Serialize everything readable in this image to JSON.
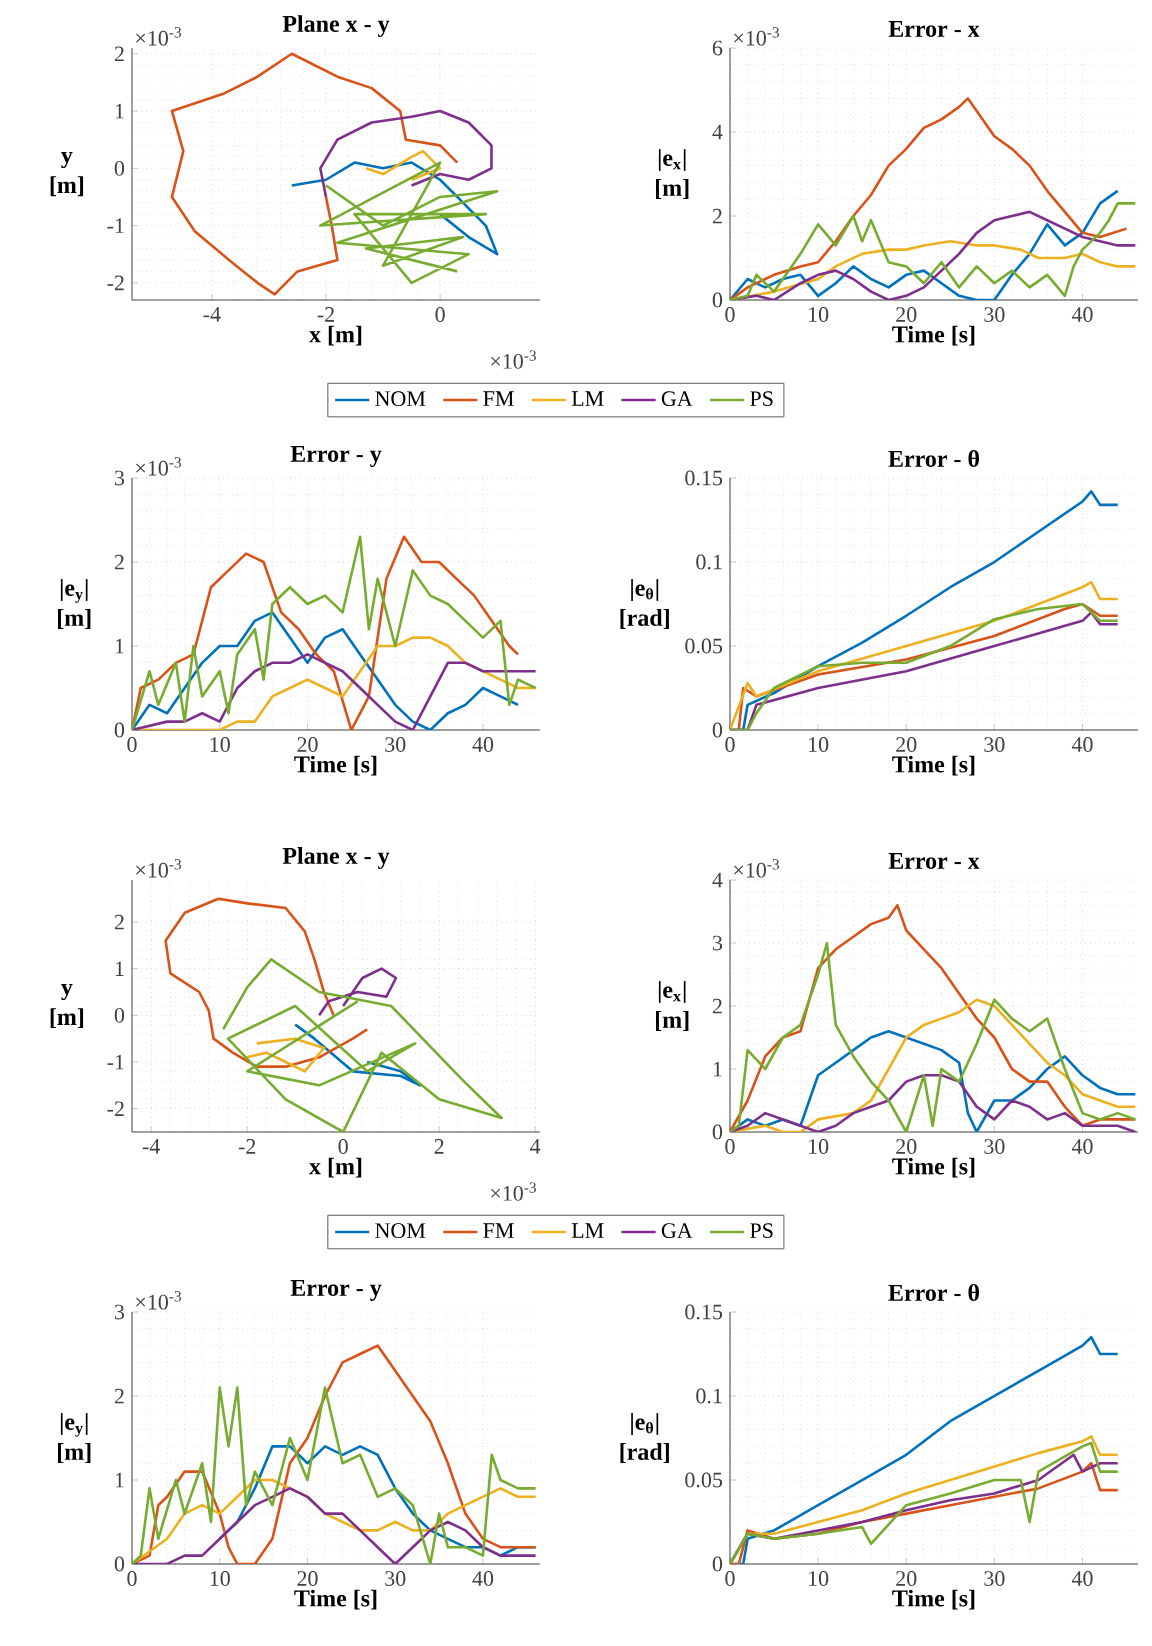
{
  "chart_data": [
    {
      "type": "line",
      "title": "Plane x - y",
      "xlabel": "x [m]",
      "ylabel": "y [m]",
      "xlim": [
        -5.4,
        1.75
      ],
      "ylim": [
        -2.3,
        2.1
      ],
      "xticks": [
        -4,
        -2,
        0
      ],
      "yticks": [
        -2,
        -1,
        0,
        1,
        2
      ],
      "grid": true,
      "legend": "bottom",
      "annotations": [
        "×10$^{-3}$",
        "×10$^{-3}$"
      ],
      "series": [
        {
          "name": "NOM",
          "color": "#0072bd",
          "x": [
            -2.6,
            -2,
            -1.5,
            -1,
            -0.5,
            0,
            0.3,
            0.8,
            1.0,
            0.5,
            0
          ],
          "values": [
            -0.3,
            -0.2,
            0.1,
            0,
            0.1,
            -0.2,
            -0.5,
            -1.0,
            -1.5,
            -1.2,
            -0.8
          ]
        },
        {
          "name": "FM",
          "color": "#d95319",
          "x": [
            0.3,
            0,
            -0.6,
            -0.7,
            -1.2,
            -1.8,
            -2.6,
            -3.2,
            -3.8,
            -4.7,
            -4.5,
            -4.7,
            -4.3,
            -3.7,
            -3.2,
            -2.9,
            -2.5,
            -1.8,
            -1.9,
            -2.0
          ],
          "values": [
            0.1,
            0.4,
            0.5,
            1.0,
            1.4,
            1.6,
            2.0,
            1.6,
            1.3,
            1.0,
            0.3,
            -0.5,
            -1.1,
            -1.6,
            -2.0,
            -2.2,
            -1.8,
            -1.6,
            -1.0,
            -0.5
          ]
        },
        {
          "name": "LM",
          "color": "#edb120",
          "x": [
            -1.3,
            -1,
            -0.5,
            -0.3,
            0,
            -0.5
          ],
          "values": [
            0,
            -0.1,
            0.2,
            0.3,
            0,
            -0.2
          ]
        },
        {
          "name": "GA",
          "color": "#7e2f8e",
          "x": [
            -2.0,
            -2.1,
            -1.8,
            -1.2,
            -0.5,
            0,
            0.5,
            0.9,
            0.9,
            0.5,
            0,
            -0.5
          ],
          "values": [
            -0.5,
            0,
            0.5,
            0.8,
            0.9,
            1.0,
            0.8,
            0.4,
            0,
            -0.2,
            -0.1,
            -0.3
          ]
        },
        {
          "name": "PS",
          "color": "#77ac30",
          "x": [
            -2,
            -1,
            0,
            1,
            -1.8,
            0.5,
            -0.5,
            -1.5,
            0.8,
            -2.1,
            0,
            -1,
            0.4,
            -1.3,
            0.3
          ],
          "values": [
            -0.3,
            -1,
            -0.5,
            -0.4,
            -1.3,
            -1.5,
            -2.0,
            -0.8,
            -0.8,
            -1.0,
            0.1,
            -1.7,
            -1.2,
            -1.4,
            -1.8
          ]
        }
      ]
    },
    {
      "type": "line",
      "title": "Error - x",
      "xlabel": "Time [s]",
      "ylabel": "|e$_{x}$| [m]",
      "xlim": [
        0,
        46.3
      ],
      "ylim": [
        0,
        6
      ],
      "xticks": [
        0,
        10,
        20,
        30,
        40
      ],
      "yticks": [
        0,
        2,
        4,
        6
      ],
      "grid": true,
      "annotations": [
        "×10$^{-3}$"
      ],
      "series": [
        {
          "color": "#0072bd",
          "x": [
            0,
            2,
            4,
            6,
            8,
            10,
            12,
            14,
            16,
            18,
            20,
            22,
            24,
            26,
            28,
            30,
            32,
            34,
            36,
            38,
            40,
            42,
            44
          ],
          "values": [
            0,
            0.5,
            0.3,
            0.5,
            0.6,
            0.1,
            0.4,
            0.8,
            0.5,
            0.3,
            0.6,
            0.7,
            0.4,
            0.1,
            0,
            0,
            0.6,
            1.1,
            1.8,
            1.3,
            1.6,
            2.3,
            2.6
          ]
        },
        {
          "color": "#d95319",
          "x": [
            0,
            2,
            5,
            8,
            10,
            12,
            14,
            16,
            18,
            20,
            22,
            24,
            26,
            27,
            28,
            30,
            32,
            34,
            36,
            38,
            40,
            42,
            45
          ],
          "values": [
            0,
            0.3,
            0.6,
            0.8,
            0.9,
            1.4,
            2.0,
            2.5,
            3.2,
            3.6,
            4.1,
            4.3,
            4.6,
            4.8,
            4.5,
            3.9,
            3.6,
            3.2,
            2.6,
            2.1,
            1.6,
            1.5,
            1.7
          ]
        },
        {
          "color": "#edb120",
          "x": [
            0,
            5,
            10,
            12,
            15,
            18,
            20,
            22,
            25,
            28,
            30,
            33,
            35,
            38,
            40,
            42,
            44,
            46
          ],
          "values": [
            0,
            0.2,
            0.5,
            0.8,
            1.1,
            1.2,
            1.2,
            1.3,
            1.4,
            1.3,
            1.3,
            1.2,
            1.0,
            1.0,
            1.1,
            0.9,
            0.8,
            0.8
          ]
        },
        {
          "color": "#7e2f8e",
          "x": [
            0,
            3,
            5,
            8,
            10,
            12,
            14,
            16,
            18,
            20,
            22,
            24,
            26,
            28,
            30,
            32,
            34,
            36,
            38,
            40,
            42,
            44,
            46
          ],
          "values": [
            0,
            0.1,
            0,
            0.4,
            0.6,
            0.7,
            0.5,
            0.2,
            0,
            0.1,
            0.3,
            0.7,
            1.1,
            1.6,
            1.9,
            2.0,
            2.1,
            1.9,
            1.7,
            1.5,
            1.4,
            1.3,
            1.3
          ]
        },
        {
          "color": "#77ac30",
          "x": [
            0,
            2,
            3,
            5,
            7,
            8,
            10,
            12,
            14,
            15,
            16,
            18,
            20,
            22,
            24,
            26,
            28,
            30,
            32,
            34,
            36,
            38,
            39,
            40,
            42,
            43,
            44,
            46
          ],
          "values": [
            0,
            0.1,
            0.6,
            0.2,
            0.8,
            1.1,
            1.8,
            1.3,
            2.0,
            1.4,
            1.9,
            0.9,
            0.8,
            0.4,
            0.9,
            0.3,
            0.8,
            0.4,
            0.7,
            0.3,
            0.6,
            0.1,
            0.8,
            1.2,
            1.6,
            1.9,
            2.3,
            2.3
          ]
        }
      ]
    },
    {
      "type": "line",
      "title": "Error - y",
      "xlabel": "Time [s]",
      "ylabel": "|e$_{y}$| [m]",
      "xlim": [
        0,
        46.5
      ],
      "ylim": [
        0,
        3
      ],
      "xticks": [
        0,
        10,
        20,
        30,
        40
      ],
      "yticks": [
        0,
        1,
        2,
        3
      ],
      "grid": true,
      "annotations": [
        "×10$^{-3}$"
      ],
      "series": [
        {
          "color": "#0072bd",
          "x": [
            0,
            2,
            4,
            6,
            8,
            10,
            12,
            14,
            16,
            18,
            20,
            22,
            24,
            26,
            28,
            30,
            32,
            34,
            36,
            38,
            40,
            42,
            44
          ],
          "values": [
            0,
            0.3,
            0.2,
            0.5,
            0.8,
            1.0,
            1.0,
            1.3,
            1.4,
            1.1,
            0.8,
            1.1,
            1.2,
            0.9,
            0.6,
            0.3,
            0.1,
            0,
            0.2,
            0.3,
            0.5,
            0.4,
            0.3
          ]
        },
        {
          "color": "#d95319",
          "x": [
            0,
            1,
            3,
            5,
            7,
            9,
            11,
            13,
            15,
            17,
            19,
            21,
            23,
            25,
            27,
            29,
            31,
            33,
            35,
            37,
            39,
            41,
            43,
            44
          ],
          "values": [
            0,
            0.5,
            0.6,
            0.8,
            0.9,
            1.7,
            1.9,
            2.1,
            2.0,
            1.4,
            1.2,
            0.9,
            0.7,
            0,
            0.4,
            1.8,
            2.3,
            2.0,
            2.0,
            1.8,
            1.6,
            1.3,
            1.0,
            0.9
          ]
        },
        {
          "color": "#edb120",
          "x": [
            0,
            10,
            12,
            14,
            16,
            18,
            20,
            22,
            24,
            26,
            28,
            30,
            32,
            34,
            36,
            38,
            40,
            42,
            44,
            46
          ],
          "values": [
            0,
            0,
            0.1,
            0.1,
            0.4,
            0.5,
            0.6,
            0.5,
            0.4,
            0.7,
            1.0,
            1.0,
            1.1,
            1.1,
            1.0,
            0.8,
            0.7,
            0.6,
            0.5,
            0.5
          ]
        },
        {
          "color": "#7e2f8e",
          "x": [
            0,
            4,
            6,
            8,
            10,
            12,
            14,
            16,
            18,
            20,
            22,
            24,
            26,
            28,
            30,
            32,
            34,
            36,
            38,
            40,
            42,
            44,
            46
          ],
          "values": [
            0,
            0.1,
            0.1,
            0.2,
            0.1,
            0.5,
            0.7,
            0.8,
            0.8,
            0.9,
            0.8,
            0.7,
            0.5,
            0.3,
            0.1,
            0,
            0.4,
            0.8,
            0.8,
            0.7,
            0.7,
            0.7,
            0.7
          ]
        },
        {
          "color": "#77ac30",
          "x": [
            0,
            2,
            3,
            5,
            6,
            7,
            8,
            10,
            11,
            12,
            14,
            15,
            16,
            18,
            20,
            22,
            24,
            26,
            27,
            28,
            30,
            32,
            34,
            36,
            38,
            40,
            42,
            43,
            44,
            46
          ],
          "values": [
            0,
            0.7,
            0.3,
            0.8,
            0.1,
            1.0,
            0.4,
            0.7,
            0.2,
            0.9,
            1.2,
            0.6,
            1.5,
            1.7,
            1.5,
            1.6,
            1.4,
            2.3,
            1.2,
            1.8,
            1.0,
            1.9,
            1.6,
            1.5,
            1.3,
            1.1,
            1.3,
            0.3,
            0.6,
            0.5
          ]
        }
      ]
    },
    {
      "type": "line",
      "title": "Error - θ",
      "xlabel": "Time [s]",
      "ylabel": "|e$_{θ}$| [rad]",
      "xlim": [
        0,
        46.3
      ],
      "ylim": [
        0,
        0.15
      ],
      "xticks": [
        0,
        10,
        20,
        30,
        40
      ],
      "yticks": [
        0,
        0.05,
        0.1,
        0.15
      ],
      "grid": true,
      "series": [
        {
          "color": "#0072bd",
          "x": [
            0,
            1.5,
            2,
            5,
            10,
            15,
            20,
            25,
            30,
            35,
            40,
            41,
            42,
            44
          ],
          "values": [
            0,
            0,
            0.015,
            0.022,
            0.038,
            0.052,
            0.068,
            0.085,
            0.1,
            0.118,
            0.136,
            0.142,
            0.134,
            0.134
          ]
        },
        {
          "color": "#d95319",
          "x": [
            0,
            1,
            1.5,
            3,
            10,
            20,
            30,
            38,
            40,
            42,
            44
          ],
          "values": [
            0,
            0,
            0.025,
            0.02,
            0.033,
            0.042,
            0.056,
            0.072,
            0.075,
            0.068,
            0.068
          ]
        },
        {
          "color": "#edb120",
          "x": [
            0,
            2,
            3,
            10,
            20,
            30,
            35,
            40,
            41,
            42,
            44
          ],
          "values": [
            0,
            0.028,
            0.02,
            0.035,
            0.05,
            0.065,
            0.075,
            0.085,
            0.088,
            0.078,
            0.078
          ]
        },
        {
          "color": "#7e2f8e",
          "x": [
            0,
            2,
            3,
            10,
            20,
            30,
            40,
            41,
            42,
            44
          ],
          "values": [
            0,
            0,
            0.015,
            0.025,
            0.035,
            0.05,
            0.065,
            0.07,
            0.063,
            0.063
          ]
        },
        {
          "color": "#77ac30",
          "x": [
            0,
            2,
            3,
            5,
            10,
            15,
            20,
            25,
            30,
            35,
            40,
            41,
            42,
            44
          ],
          "values": [
            0,
            0,
            0.01,
            0.025,
            0.038,
            0.04,
            0.04,
            0.05,
            0.066,
            0.072,
            0.075,
            0.07,
            0.065,
            0.065
          ]
        }
      ]
    },
    {
      "type": "line",
      "title": "Plane x - y",
      "xlabel": "x [m]",
      "ylabel": "y [m]",
      "xlim": [
        -4.4,
        4.1
      ],
      "ylim": [
        -2.5,
        2.9
      ],
      "xticks": [
        -4,
        -2,
        0,
        2,
        4
      ],
      "yticks": [
        -2,
        -1,
        0,
        1,
        2
      ],
      "grid": true,
      "legend": "bottom",
      "annotations": [
        "×10$^{-3}$",
        "×10$^{-3}$"
      ],
      "series": [
        {
          "name": "NOM",
          "color": "#0072bd",
          "x": [
            -1.0,
            -0.6,
            0.2,
            1.2,
            1.6,
            1.2,
            0.5
          ],
          "values": [
            -0.2,
            -0.5,
            -1.2,
            -1.3,
            -1.5,
            -1.2,
            -1.0
          ]
        },
        {
          "name": "FM",
          "color": "#d95319",
          "x": [
            -0.2,
            -0.4,
            -0.6,
            -0.8,
            -1.2,
            -2.0,
            -2.6,
            -3.3,
            -3.7,
            -3.6,
            -3.0,
            -2.8,
            -2.7,
            -2.3,
            -1.8,
            -1.2,
            -0.5,
            0.2,
            0.5
          ],
          "values": [
            0.0,
            0.5,
            1.2,
            1.8,
            2.3,
            2.4,
            2.5,
            2.2,
            1.6,
            0.9,
            0.5,
            0.1,
            -0.5,
            -0.8,
            -1.1,
            -1.1,
            -0.9,
            -0.5,
            -0.3
          ]
        },
        {
          "name": "LM",
          "color": "#edb120",
          "x": [
            -2.0,
            -1.6,
            -1.2,
            -0.8,
            -0.4,
            -1.0,
            -1.8
          ],
          "values": [
            -0.9,
            -0.8,
            -1.0,
            -1.2,
            -0.7,
            -0.5,
            -0.6
          ]
        },
        {
          "name": "GA",
          "color": "#7e2f8e",
          "x": [
            0,
            0.4,
            0.8,
            1.1,
            0.9,
            0.3,
            -0.3,
            -0.5
          ],
          "values": [
            0.2,
            0.8,
            1.0,
            0.8,
            0.4,
            0.5,
            0.3,
            0
          ]
        },
        {
          "name": "PS",
          "color": "#77ac30",
          "x": [
            -2.5,
            -2.0,
            -1.5,
            -0.5,
            1.0,
            2.5,
            3.3,
            2.0,
            0.8,
            0,
            -1.2,
            -2.4,
            -1.0,
            0.5,
            1.5,
            -0.5,
            -2.0,
            0.3
          ],
          "values": [
            -0.3,
            0.6,
            1.2,
            0.5,
            0.2,
            -1.4,
            -2.2,
            -1.8,
            -0.8,
            -2.5,
            -1.8,
            -0.5,
            0.2,
            -1.2,
            -0.6,
            -1.5,
            -1.2,
            0.3
          ]
        }
      ]
    },
    {
      "type": "line",
      "title": "Error - x",
      "xlabel": "Time [s]",
      "ylabel": "|e$_{x}$| [m]",
      "xlim": [
        0,
        46.3
      ],
      "ylim": [
        0,
        4
      ],
      "xticks": [
        0,
        10,
        20,
        30,
        40
      ],
      "yticks": [
        0,
        1,
        2,
        3,
        4
      ],
      "grid": true,
      "annotations": [
        "×10$^{-3}$"
      ],
      "series": [
        {
          "color": "#0072bd",
          "x": [
            0,
            2,
            4,
            6,
            8,
            10,
            12,
            14,
            16,
            18,
            20,
            22,
            24,
            26,
            27,
            28,
            30,
            32,
            34,
            36,
            38,
            40,
            42,
            44,
            46
          ],
          "values": [
            0,
            0.2,
            0.1,
            0.2,
            0.1,
            0.9,
            1.1,
            1.3,
            1.5,
            1.6,
            1.5,
            1.4,
            1.3,
            1.1,
            0.3,
            0,
            0.5,
            0.5,
            0.7,
            1.0,
            1.2,
            0.9,
            0.7,
            0.6,
            0.6
          ]
        },
        {
          "color": "#d95319",
          "x": [
            0,
            2,
            4,
            6,
            8,
            10,
            12,
            14,
            16,
            18,
            19,
            20,
            22,
            24,
            26,
            28,
            30,
            32,
            34,
            36,
            38,
            40,
            42,
            44,
            46
          ],
          "values": [
            0,
            0.5,
            1.2,
            1.5,
            1.6,
            2.6,
            2.9,
            3.1,
            3.3,
            3.4,
            3.6,
            3.2,
            2.9,
            2.6,
            2.2,
            1.8,
            1.5,
            1.0,
            0.8,
            0.8,
            0.4,
            0.1,
            0.2,
            0.2,
            0.2
          ]
        },
        {
          "color": "#edb120",
          "x": [
            0,
            4,
            6,
            8,
            10,
            14,
            16,
            18,
            20,
            22,
            24,
            26,
            28,
            30,
            32,
            34,
            36,
            38,
            40,
            42,
            44,
            46
          ],
          "values": [
            0,
            0.1,
            0,
            0,
            0.2,
            0.3,
            0.5,
            1.0,
            1.5,
            1.7,
            1.8,
            1.9,
            2.1,
            2.0,
            1.7,
            1.4,
            1.1,
            0.9,
            0.6,
            0.5,
            0.4,
            0.4
          ]
        },
        {
          "color": "#7e2f8e",
          "x": [
            0,
            2,
            4,
            6,
            8,
            10,
            12,
            14,
            16,
            18,
            20,
            22,
            24,
            26,
            28,
            30,
            32,
            34,
            36,
            38,
            40,
            42,
            44,
            46
          ],
          "values": [
            0,
            0.1,
            0.3,
            0.2,
            0.1,
            0,
            0.1,
            0.3,
            0.4,
            0.5,
            0.8,
            0.9,
            0.9,
            0.8,
            0.4,
            0.2,
            0.5,
            0.4,
            0.2,
            0.3,
            0.1,
            0.1,
            0.1,
            0
          ]
        },
        {
          "color": "#77ac30",
          "x": [
            0,
            1,
            2,
            4,
            6,
            8,
            10,
            11,
            12,
            14,
            16,
            18,
            20,
            22,
            23,
            24,
            26,
            28,
            30,
            32,
            34,
            36,
            38,
            40,
            42,
            44,
            46
          ],
          "values": [
            0,
            0.1,
            1.3,
            1.0,
            1.5,
            1.7,
            2.5,
            3.0,
            1.7,
            1.2,
            0.8,
            0.5,
            0,
            0.9,
            0.1,
            1.0,
            0.8,
            1.4,
            2.1,
            1.8,
            1.6,
            1.8,
            1.0,
            0.3,
            0.2,
            0.3,
            0.2
          ]
        }
      ]
    },
    {
      "type": "line",
      "title": "Error - y",
      "xlabel": "Time [s]",
      "ylabel": "|e$_{y}$| [m]",
      "xlim": [
        0,
        46.5
      ],
      "ylim": [
        0,
        3
      ],
      "xticks": [
        0,
        10,
        20,
        30,
        40
      ],
      "yticks": [
        0,
        1,
        2,
        3
      ],
      "grid": true,
      "annotations": [
        "×10$^{-3}$"
      ],
      "series": [
        {
          "color": "#0072bd",
          "x": [
            10,
            12,
            14,
            16,
            18,
            20,
            22,
            24,
            26,
            28,
            30,
            32,
            34,
            36,
            38,
            40,
            42,
            44,
            46
          ],
          "values": [
            0.3,
            0.5,
            0.9,
            1.4,
            1.4,
            1.2,
            1.4,
            1.3,
            1.4,
            1.3,
            0.9,
            0.6,
            0.4,
            0.3,
            0.2,
            0.2,
            0.1,
            0.2,
            0.2
          ]
        },
        {
          "color": "#d95319",
          "x": [
            0,
            2,
            3,
            4,
            6,
            8,
            10,
            11,
            12,
            14,
            16,
            18,
            20,
            22,
            24,
            26,
            28,
            30,
            32,
            34,
            36,
            38,
            40,
            42,
            44,
            46
          ],
          "values": [
            0,
            0.1,
            0.7,
            0.8,
            1.1,
            1.1,
            0.6,
            0.2,
            0,
            0,
            0.3,
            1.2,
            1.5,
            2.0,
            2.4,
            2.5,
            2.6,
            2.3,
            2.0,
            1.7,
            1.2,
            0.6,
            0.3,
            0.2,
            0.2,
            0.2
          ]
        },
        {
          "color": "#edb120",
          "x": [
            0,
            4,
            6,
            8,
            10,
            12,
            14,
            16,
            18,
            20,
            22,
            24,
            26,
            28,
            30,
            32,
            34,
            36,
            38,
            40,
            42,
            44,
            46
          ],
          "values": [
            0,
            0.3,
            0.6,
            0.7,
            0.6,
            0.8,
            1.0,
            1.0,
            0.9,
            0.8,
            0.6,
            0.5,
            0.4,
            0.4,
            0.5,
            0.4,
            0.4,
            0.6,
            0.7,
            0.8,
            0.9,
            0.8,
            0.8
          ]
        },
        {
          "color": "#7e2f8e",
          "x": [
            0,
            4,
            6,
            8,
            10,
            12,
            14,
            16,
            18,
            20,
            22,
            24,
            26,
            28,
            30,
            32,
            34,
            36,
            38,
            40,
            42,
            44,
            46
          ],
          "values": [
            0,
            0,
            0.1,
            0.1,
            0.3,
            0.5,
            0.7,
            0.8,
            0.9,
            0.8,
            0.6,
            0.6,
            0.4,
            0.2,
            0,
            0.2,
            0.4,
            0.5,
            0.4,
            0.2,
            0.1,
            0.1,
            0.1
          ]
        },
        {
          "color": "#77ac30",
          "x": [
            0,
            1,
            2,
            3,
            5,
            6,
            8,
            9,
            10,
            11,
            12,
            13,
            14,
            16,
            18,
            20,
            22,
            24,
            26,
            28,
            30,
            32,
            34,
            35,
            36,
            38,
            40,
            41,
            42,
            44,
            46
          ],
          "values": [
            0,
            0.1,
            0.9,
            0.3,
            1.0,
            0.6,
            1.2,
            0.5,
            2.1,
            1.4,
            2.1,
            0.7,
            1.1,
            0.7,
            1.5,
            1.0,
            2.1,
            1.2,
            1.3,
            0.8,
            0.9,
            0.7,
            0,
            0.6,
            0.2,
            0.2,
            0.1,
            1.3,
            1.0,
            0.9,
            0.9
          ]
        }
      ]
    },
    {
      "type": "line",
      "title": "Error - θ",
      "xlabel": "Time [s]",
      "ylabel": "|e$_{θ}$| [rad]",
      "xlim": [
        0,
        46.3
      ],
      "ylim": [
        0,
        0.15
      ],
      "xticks": [
        0,
        10,
        20,
        30,
        40
      ],
      "yticks": [
        0,
        0.05,
        0.1,
        0.15
      ],
      "grid": true,
      "series": [
        {
          "color": "#0072bd",
          "x": [
            0,
            1.5,
            2,
            5,
            10,
            15,
            20,
            25,
            30,
            35,
            40,
            41,
            42,
            44
          ],
          "values": [
            0,
            0,
            0.015,
            0.02,
            0.035,
            0.05,
            0.065,
            0.085,
            0.1,
            0.115,
            0.13,
            0.135,
            0.125,
            0.125
          ]
        },
        {
          "color": "#d95319",
          "x": [
            0,
            1,
            2,
            5,
            10,
            15,
            20,
            25,
            30,
            35,
            40,
            41,
            42,
            44
          ],
          "values": [
            0,
            0,
            0.02,
            0.015,
            0.018,
            0.025,
            0.03,
            0.035,
            0.04,
            0.045,
            0.055,
            0.06,
            0.044,
            0.044
          ]
        },
        {
          "color": "#edb120",
          "x": [
            0,
            2,
            5,
            10,
            15,
            20,
            25,
            30,
            35,
            40,
            41,
            42,
            44
          ],
          "values": [
            0,
            0.018,
            0.018,
            0.025,
            0.032,
            0.042,
            0.05,
            0.058,
            0.066,
            0.073,
            0.076,
            0.065,
            0.065
          ]
        },
        {
          "color": "#7e2f8e",
          "x": [
            0,
            2,
            5,
            10,
            15,
            20,
            25,
            30,
            35,
            39,
            40,
            42,
            44
          ],
          "values": [
            0,
            0.018,
            0.015,
            0.02,
            0.025,
            0.032,
            0.038,
            0.042,
            0.05,
            0.065,
            0.055,
            0.06,
            0.06
          ]
        },
        {
          "color": "#77ac30",
          "x": [
            0,
            2,
            5,
            10,
            15,
            16,
            20,
            25,
            30,
            33,
            34,
            35,
            40,
            41,
            42,
            44
          ],
          "values": [
            0,
            0.018,
            0.015,
            0.018,
            0.022,
            0.012,
            0.035,
            0.042,
            0.05,
            0.05,
            0.025,
            0.055,
            0.07,
            0.072,
            0.055,
            0.055
          ]
        }
      ]
    }
  ]
}
